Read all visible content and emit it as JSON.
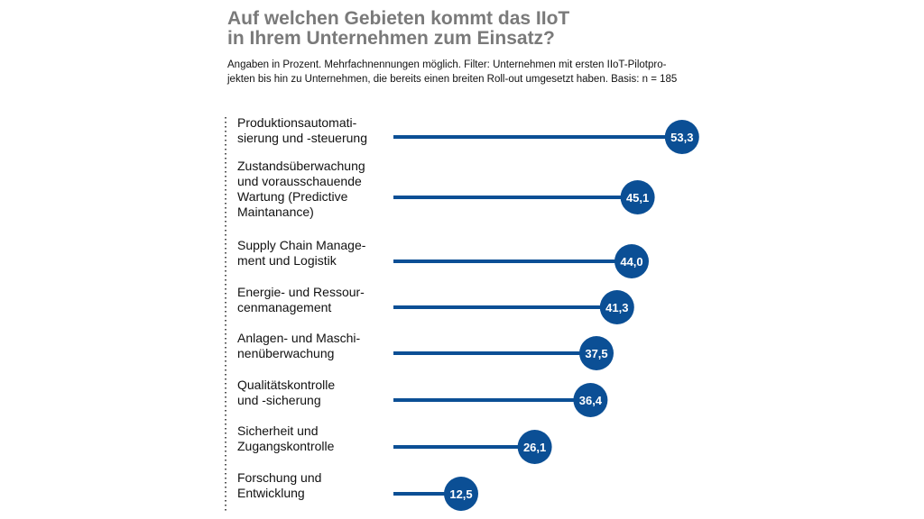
{
  "title_line1": "Auf welchen Gebieten kommt das IIoT",
  "title_line2": "in Ihrem Unternehmen zum Einsatz?",
  "subtitle_line1": "Angaben in Prozent. Mehrfachnennungen möglich. Filter: Unternehmen mit ersten IIoT-Pilotpro-",
  "subtitle_line2": "jekten bis hin zu Unternehmen, die bereits einen breiten Roll-out umgesetzt haben. Basis: n = 185",
  "colors": {
    "bar": "#0b4f95",
    "title": "#7a7a7a",
    "axis": "#555555"
  },
  "chart_data": {
    "type": "bar",
    "orientation": "horizontal",
    "title": "Auf welchen Gebieten kommt das IIoT in Ihrem Unternehmen zum Einsatz?",
    "categories": [
      [
        "Produktionsautomati-",
        "sierung und -steuerung"
      ],
      [
        "Zustandsüberwachung",
        "und vorausschauende",
        "Wartung (Predictive",
        "Maintanance)"
      ],
      [
        "Supply Chain Manage-",
        "ment und Logistik"
      ],
      [
        "Energie- und Ressour-",
        "cenmanagement"
      ],
      [
        "Anlagen- und Maschi-",
        "nenüberwachung"
      ],
      [
        "Qualitätskontrolle",
        "und -sicherung"
      ],
      [
        "Sicherheit und",
        "Zugangskontrolle"
      ],
      [
        "Forschung und",
        "Entwicklung"
      ]
    ],
    "values": [
      53.3,
      45.1,
      44.0,
      41.3,
      37.5,
      36.4,
      26.1,
      12.5
    ],
    "value_labels": [
      "53,3",
      "45,1",
      "44,0",
      "41,3",
      "37,5",
      "36,4",
      "26,1",
      "12,5"
    ],
    "xlim": [
      0,
      55
    ],
    "grid": false
  }
}
